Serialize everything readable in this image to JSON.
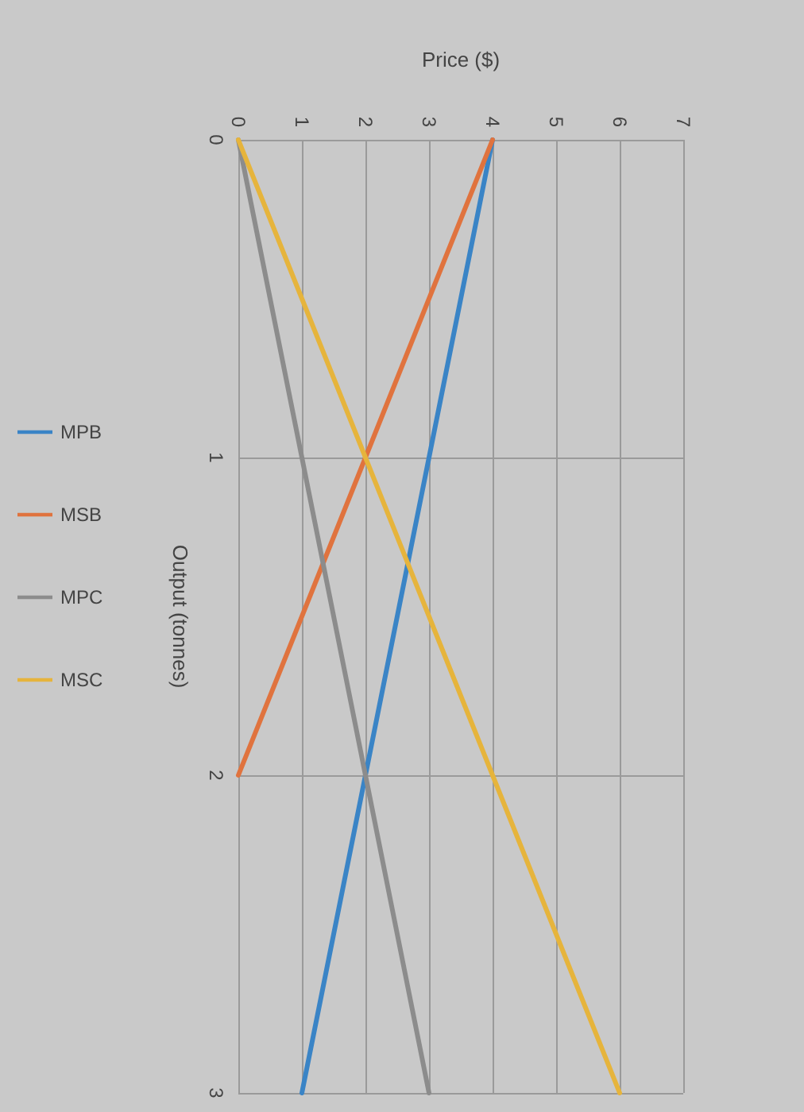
{
  "chart_data": {
    "type": "line",
    "xlabel": "Price ($)",
    "ylabel": "Output (tonnes)",
    "xlim": [
      0,
      7
    ],
    "xticks": [
      0,
      1,
      2,
      3,
      4,
      5,
      6,
      7
    ],
    "ylim": [
      3,
      0
    ],
    "yticks": [
      0,
      1,
      2,
      3
    ],
    "series": [
      {
        "name": "MPB",
        "color": "#3a84c6",
        "x": [
          4,
          1
        ],
        "values": [
          0,
          3
        ]
      },
      {
        "name": "MSB",
        "color": "#e0733e",
        "x": [
          4,
          0
        ],
        "values": [
          0,
          2
        ]
      },
      {
        "name": "MPC",
        "color": "#8c8c8c",
        "x": [
          0,
          3
        ],
        "values": [
          0,
          3
        ]
      },
      {
        "name": "MSC",
        "color": "#e6b43c",
        "x": [
          0,
          6
        ],
        "values": [
          0,
          3
        ]
      }
    ],
    "grid": true,
    "legend": "left",
    "marker": "none",
    "line_style": "solid"
  }
}
